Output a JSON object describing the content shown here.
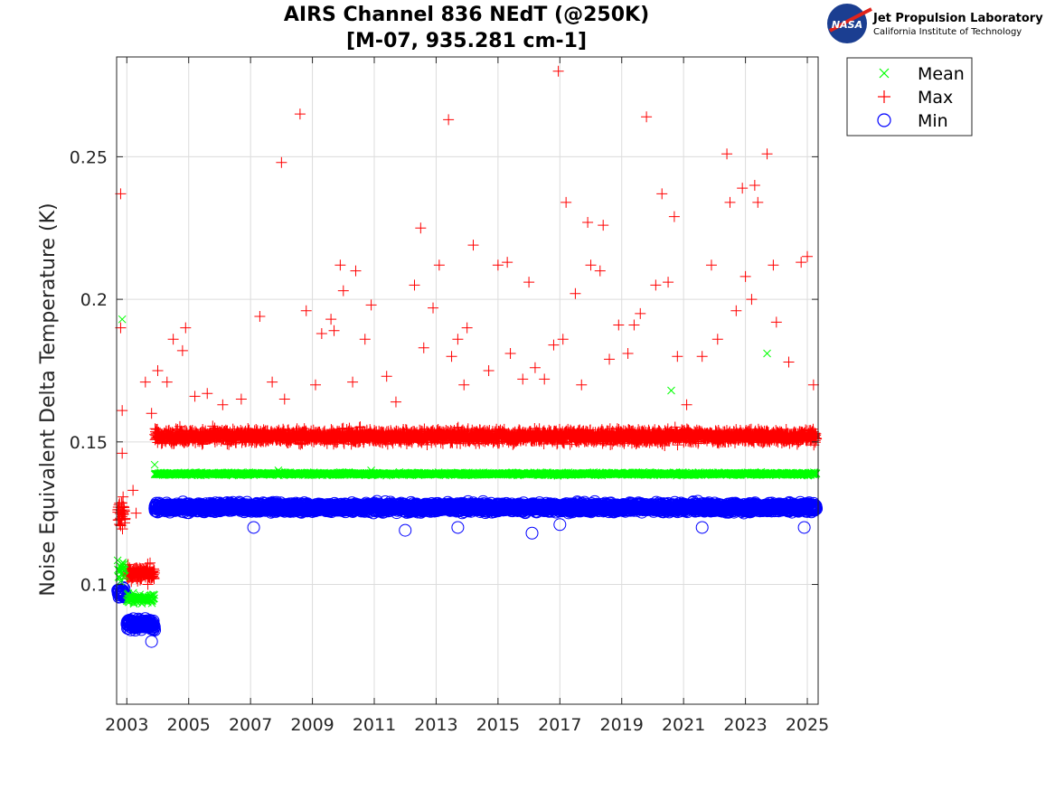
{
  "logo": {
    "line1": "Jet Propulsion Laboratory",
    "line2": "California Institute of Technology",
    "badge": "NASA"
  },
  "chart_data": {
    "type": "scatter",
    "title": "AIRS Channel 836 NEdT (@250K)",
    "subtitle": "[M-07, 935.281 cm-1]",
    "ylabel": "Noise Equivalent Delta Temperature (K)",
    "xlim": [
      2002.67,
      2025.35
    ],
    "ylim": [
      0.058,
      0.285
    ],
    "xticks": [
      2003,
      2005,
      2007,
      2009,
      2011,
      2013,
      2015,
      2017,
      2019,
      2021,
      2023,
      2025
    ],
    "xtick_labels": [
      "2003",
      "2005",
      "2007",
      "2009",
      "2011",
      "2013",
      "2015",
      "2017",
      "2019",
      "2021",
      "2023",
      "2025"
    ],
    "yticks": [
      0.1,
      0.15,
      0.2,
      0.25
    ],
    "ytick_labels": [
      "0.1",
      "0.15",
      "0.2",
      "0.25"
    ],
    "grid": true,
    "legend_position": "outside-top-right",
    "series": [
      {
        "name": "Mean",
        "marker": "x",
        "color": "#00ff00",
        "segments": [
          {
            "x_start": 2002.7,
            "x_end": 2002.95,
            "y_center": 0.105,
            "spread": 0.006
          },
          {
            "x_start": 2003.0,
            "x_end": 2003.9,
            "y_center": 0.095,
            "spread": 0.003
          },
          {
            "x_start": 2003.9,
            "x_end": 2025.3,
            "y_center": 0.1388,
            "spread": 0.0008
          }
        ],
        "outliers": [
          [
            2002.85,
            0.193
          ],
          [
            2003.9,
            0.142
          ],
          [
            2007.9,
            0.14
          ],
          [
            2010.9,
            0.14
          ],
          [
            2020.6,
            0.168
          ],
          [
            2023.7,
            0.181
          ]
        ]
      },
      {
        "name": "Max",
        "marker": "+",
        "color": "#ff0000",
        "segments": [
          {
            "x_start": 2002.7,
            "x_end": 2002.95,
            "y_center": 0.125,
            "spread": 0.01
          },
          {
            "x_start": 2003.0,
            "x_end": 2003.9,
            "y_center": 0.104,
            "spread": 0.005
          },
          {
            "x_start": 2003.9,
            "x_end": 2025.3,
            "y_center": 0.152,
            "spread": 0.004
          }
        ],
        "outliers": [
          [
            2002.8,
            0.237
          ],
          [
            2002.8,
            0.19
          ],
          [
            2002.85,
            0.161
          ],
          [
            2002.85,
            0.146
          ],
          [
            2003.2,
            0.133
          ],
          [
            2003.3,
            0.125
          ],
          [
            2003.6,
            0.171
          ],
          [
            2003.8,
            0.16
          ],
          [
            2004.0,
            0.175
          ],
          [
            2004.3,
            0.171
          ],
          [
            2004.5,
            0.186
          ],
          [
            2004.8,
            0.182
          ],
          [
            2004.9,
            0.19
          ],
          [
            2005.2,
            0.166
          ],
          [
            2005.6,
            0.167
          ],
          [
            2006.1,
            0.163
          ],
          [
            2006.7,
            0.165
          ],
          [
            2007.3,
            0.194
          ],
          [
            2007.7,
            0.171
          ],
          [
            2008.0,
            0.248
          ],
          [
            2008.1,
            0.165
          ],
          [
            2008.6,
            0.265
          ],
          [
            2008.8,
            0.196
          ],
          [
            2009.1,
            0.17
          ],
          [
            2009.3,
            0.188
          ],
          [
            2009.6,
            0.193
          ],
          [
            2009.7,
            0.189
          ],
          [
            2009.9,
            0.212
          ],
          [
            2010.0,
            0.203
          ],
          [
            2010.3,
            0.171
          ],
          [
            2010.4,
            0.21
          ],
          [
            2010.7,
            0.186
          ],
          [
            2010.9,
            0.198
          ],
          [
            2011.4,
            0.173
          ],
          [
            2011.7,
            0.164
          ],
          [
            2012.3,
            0.205
          ],
          [
            2012.5,
            0.225
          ],
          [
            2012.6,
            0.183
          ],
          [
            2012.9,
            0.197
          ],
          [
            2013.1,
            0.212
          ],
          [
            2013.4,
            0.263
          ],
          [
            2013.5,
            0.18
          ],
          [
            2013.7,
            0.186
          ],
          [
            2013.9,
            0.17
          ],
          [
            2014.0,
            0.19
          ],
          [
            2014.2,
            0.219
          ],
          [
            2014.7,
            0.175
          ],
          [
            2015.0,
            0.212
          ],
          [
            2015.3,
            0.213
          ],
          [
            2015.4,
            0.181
          ],
          [
            2015.8,
            0.172
          ],
          [
            2016.0,
            0.206
          ],
          [
            2016.2,
            0.176
          ],
          [
            2016.5,
            0.172
          ],
          [
            2016.8,
            0.184
          ],
          [
            2016.95,
            0.28
          ],
          [
            2017.1,
            0.186
          ],
          [
            2017.2,
            0.234
          ],
          [
            2017.5,
            0.202
          ],
          [
            2017.7,
            0.17
          ],
          [
            2017.9,
            0.227
          ],
          [
            2018.0,
            0.212
          ],
          [
            2018.3,
            0.21
          ],
          [
            2018.4,
            0.226
          ],
          [
            2018.6,
            0.179
          ],
          [
            2018.9,
            0.191
          ],
          [
            2019.2,
            0.181
          ],
          [
            2019.4,
            0.191
          ],
          [
            2019.6,
            0.195
          ],
          [
            2019.8,
            0.264
          ],
          [
            2020.1,
            0.205
          ],
          [
            2020.3,
            0.237
          ],
          [
            2020.5,
            0.206
          ],
          [
            2020.7,
            0.229
          ],
          [
            2020.8,
            0.18
          ],
          [
            2021.1,
            0.163
          ],
          [
            2021.6,
            0.18
          ],
          [
            2021.9,
            0.212
          ],
          [
            2022.1,
            0.186
          ],
          [
            2022.4,
            0.251
          ],
          [
            2022.5,
            0.234
          ],
          [
            2022.7,
            0.196
          ],
          [
            2022.9,
            0.239
          ],
          [
            2023.0,
            0.208
          ],
          [
            2023.2,
            0.2
          ],
          [
            2023.3,
            0.24
          ],
          [
            2023.4,
            0.234
          ],
          [
            2023.7,
            0.251
          ],
          [
            2023.9,
            0.212
          ],
          [
            2024.0,
            0.192
          ],
          [
            2024.4,
            0.178
          ],
          [
            2024.8,
            0.213
          ],
          [
            2025.0,
            0.215
          ],
          [
            2025.2,
            0.17
          ]
        ]
      },
      {
        "name": "Min",
        "marker": "o",
        "color": "#0000ff",
        "segments": [
          {
            "x_start": 2002.7,
            "x_end": 2002.95,
            "y_center": 0.097,
            "spread": 0.003
          },
          {
            "x_start": 2003.0,
            "x_end": 2003.9,
            "y_center": 0.086,
            "spread": 0.003
          },
          {
            "x_start": 2003.9,
            "x_end": 2025.3,
            "y_center": 0.127,
            "spread": 0.0025
          }
        ],
        "outliers": [
          [
            2003.8,
            0.08
          ],
          [
            2016.1,
            0.118
          ],
          [
            2017.0,
            0.121
          ],
          [
            2021.6,
            0.12
          ],
          [
            2024.9,
            0.12
          ],
          [
            2007.1,
            0.12
          ],
          [
            2012.0,
            0.119
          ],
          [
            2013.7,
            0.12
          ]
        ]
      }
    ]
  }
}
